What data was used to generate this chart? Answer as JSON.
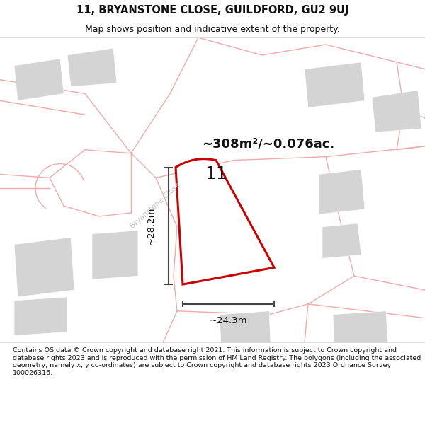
{
  "title": "11, BRYANSTONE CLOSE, GUILDFORD, GU2 9UJ",
  "subtitle": "Map shows position and indicative extent of the property.",
  "area_label": "~308m²/~0.076ac.",
  "plot_number": "11",
  "dim_width": "~24.3m",
  "dim_height": "~28.2m",
  "footer": "Contains OS data © Crown copyright and database right 2021. This information is subject to Crown copyright and database rights 2023 and is reproduced with the permission of HM Land Registry. The polygons (including the associated geometry, namely x, y co-ordinates) are subject to Crown copyright and database rights 2023 Ordnance Survey 100026316.",
  "bg_color": "#ffffff",
  "map_bg": "#ffffff",
  "road_color": "#f2aaaa",
  "building_color": "#d4d4d4",
  "plot_outline_color": "#cc0000",
  "plot_fill_color": "#ffffff",
  "road_label_color": "#c0c0c0",
  "dim_color": "#444444",
  "street_name": "Bryanstone Close",
  "title_fontsize": 10.5,
  "subtitle_fontsize": 9.0,
  "footer_fontsize": 6.8
}
